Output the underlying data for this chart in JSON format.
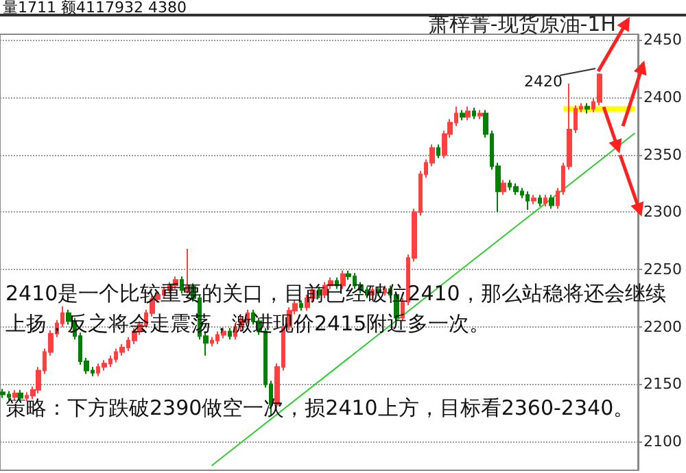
{
  "chart_data": {
    "type": "candlestick",
    "title": "萧梓菁-现货原油-1H",
    "categories": [
      null,
      null,
      null,
      null,
      null,
      null,
      null,
      null,
      null,
      null,
      null,
      null,
      null,
      null,
      null,
      null,
      null,
      null,
      null,
      null,
      null,
      null,
      null,
      null,
      null,
      null,
      null,
      null,
      null,
      null,
      null,
      null,
      null,
      null,
      null,
      null,
      null,
      null,
      null,
      null,
      null,
      null,
      null,
      null,
      null,
      null,
      null,
      null,
      null,
      null,
      null,
      null,
      null,
      null,
      null,
      null,
      null,
      null,
      null,
      null,
      null,
      null,
      null,
      null,
      null,
      null,
      null,
      null,
      null,
      null,
      null,
      null,
      null,
      null,
      null,
      null,
      null,
      null,
      null,
      null,
      null,
      null,
      null,
      null,
      null,
      null,
      null,
      null,
      null,
      null,
      null,
      null,
      null,
      null,
      null,
      null,
      null,
      null,
      null,
      null,
      null,
      null,
      null,
      null,
      null,
      null,
      null
    ],
    "ohlc": [
      [
        2143,
        2146,
        2138,
        2141
      ],
      [
        2141,
        2144,
        2136,
        2139
      ],
      [
        2139,
        2145,
        2136,
        2142
      ],
      [
        2142,
        2145,
        2135,
        2138
      ],
      [
        2138,
        2143,
        2135,
        2140
      ],
      [
        2140,
        2148,
        2137,
        2145
      ],
      [
        2145,
        2165,
        2142,
        2162
      ],
      [
        2162,
        2181,
        2159,
        2178
      ],
      [
        2178,
        2197,
        2175,
        2194
      ],
      [
        2194,
        2206,
        2191,
        2203
      ],
      [
        2203,
        2218,
        2200,
        2212
      ],
      [
        2212,
        2215,
        2202,
        2205
      ],
      [
        2205,
        2208,
        2189,
        2192
      ],
      [
        2192,
        2195,
        2167,
        2170
      ],
      [
        2170,
        2173,
        2159,
        2162
      ],
      [
        2162,
        2165,
        2157,
        2160
      ],
      [
        2160,
        2168,
        2157,
        2165
      ],
      [
        2165,
        2171,
        2162,
        2168
      ],
      [
        2168,
        2175,
        2165,
        2172
      ],
      [
        2172,
        2181,
        2169,
        2178
      ],
      [
        2178,
        2185,
        2175,
        2182
      ],
      [
        2182,
        2191,
        2179,
        2188
      ],
      [
        2188,
        2199,
        2185,
        2196
      ],
      [
        2196,
        2205,
        2193,
        2202
      ],
      [
        2202,
        2215,
        2199,
        2212
      ],
      [
        2212,
        2227,
        2209,
        2224
      ],
      [
        2224,
        2231,
        2221,
        2228
      ],
      [
        2228,
        2235,
        2225,
        2232
      ],
      [
        2232,
        2239,
        2229,
        2236
      ],
      [
        2236,
        2244,
        2233,
        2241
      ],
      [
        2241,
        2244,
        2229,
        2232
      ],
      [
        2232,
        2268,
        2229,
        2235
      ],
      [
        2235,
        2238,
        2222,
        2225
      ],
      [
        2225,
        2228,
        2189,
        2192
      ],
      [
        2192,
        2195,
        2175,
        2186
      ],
      [
        2186,
        2191,
        2183,
        2188
      ],
      [
        2188,
        2196,
        2185,
        2193
      ],
      [
        2193,
        2199,
        2190,
        2196
      ],
      [
        2196,
        2199,
        2189,
        2192
      ],
      [
        2192,
        2203,
        2189,
        2200
      ],
      [
        2200,
        2209,
        2197,
        2206
      ],
      [
        2206,
        2215,
        2203,
        2212
      ],
      [
        2212,
        2215,
        2202,
        2205
      ],
      [
        2205,
        2208,
        2193,
        2196
      ],
      [
        2196,
        2199,
        2147,
        2150
      ],
      [
        2150,
        2153,
        2122,
        2132
      ],
      [
        2132,
        2168,
        2129,
        2165
      ],
      [
        2165,
        2203,
        2162,
        2200
      ],
      [
        2200,
        2217,
        2197,
        2214
      ],
      [
        2214,
        2223,
        2211,
        2220
      ],
      [
        2220,
        2223,
        2214,
        2217
      ],
      [
        2217,
        2228,
        2214,
        2225
      ],
      [
        2225,
        2235,
        2222,
        2232
      ],
      [
        2232,
        2235,
        2225,
        2228
      ],
      [
        2228,
        2239,
        2225,
        2236
      ],
      [
        2236,
        2243,
        2233,
        2240
      ],
      [
        2240,
        2243,
        2233,
        2236
      ],
      [
        2236,
        2249,
        2233,
        2246
      ],
      [
        2246,
        2249,
        2241,
        2244
      ],
      [
        2244,
        2247,
        2233,
        2236
      ],
      [
        2236,
        2239,
        2229,
        2232
      ],
      [
        2232,
        2235,
        2225,
        2228
      ],
      [
        2228,
        2235,
        2225,
        2232
      ],
      [
        2232,
        2235,
        2227,
        2230
      ],
      [
        2230,
        2236,
        2227,
        2233
      ],
      [
        2233,
        2236,
        2225,
        2228
      ],
      [
        2228,
        2231,
        2205,
        2208
      ],
      [
        2208,
        2225,
        2205,
        2222
      ],
      [
        2222,
        2263,
        2219,
        2260
      ],
      [
        2260,
        2303,
        2257,
        2300
      ],
      [
        2300,
        2336,
        2297,
        2333
      ],
      [
        2333,
        2346,
        2330,
        2343
      ],
      [
        2343,
        2359,
        2340,
        2356
      ],
      [
        2356,
        2359,
        2347,
        2350
      ],
      [
        2350,
        2371,
        2347,
        2368
      ],
      [
        2368,
        2381,
        2365,
        2378
      ],
      [
        2378,
        2392,
        2375,
        2386
      ],
      [
        2386,
        2389,
        2380,
        2383
      ],
      [
        2383,
        2392,
        2380,
        2388
      ],
      [
        2388,
        2391,
        2381,
        2384
      ],
      [
        2384,
        2389,
        2381,
        2386
      ],
      [
        2386,
        2389,
        2365,
        2368
      ],
      [
        2368,
        2371,
        2337,
        2340
      ],
      [
        2340,
        2343,
        2300,
        2318
      ],
      [
        2318,
        2328,
        2315,
        2325
      ],
      [
        2325,
        2328,
        2319,
        2322
      ],
      [
        2322,
        2325,
        2315,
        2318
      ],
      [
        2318,
        2321,
        2312,
        2315
      ],
      [
        2315,
        2318,
        2302,
        2310
      ],
      [
        2310,
        2315,
        2307,
        2312
      ],
      [
        2312,
        2315,
        2305,
        2308
      ],
      [
        2308,
        2315,
        2305,
        2312
      ],
      [
        2312,
        2315,
        2303,
        2306
      ],
      [
        2306,
        2321,
        2303,
        2318
      ],
      [
        2318,
        2343,
        2315,
        2340
      ],
      [
        2340,
        2412,
        2337,
        2372
      ],
      [
        2372,
        2393,
        2369,
        2390
      ],
      [
        2390,
        2395,
        2387,
        2392
      ],
      [
        2392,
        2395,
        2386,
        2390
      ],
      [
        2390,
        2399,
        2387,
        2396
      ],
      [
        2396,
        2421,
        2393,
        2420
      ],
      null,
      null,
      null,
      null,
      null,
      null
    ],
    "series": [
      {
        "type": "line",
        "color": "#33cc33",
        "values": [
          null,
          null,
          null,
          null,
          null,
          null,
          null,
          null,
          null,
          null,
          null,
          null,
          null,
          null,
          null,
          null,
          null,
          null,
          null,
          null,
          null,
          null,
          null,
          null,
          null,
          null,
          null,
          null,
          null,
          null,
          null,
          null,
          null,
          null,
          null,
          2079,
          null,
          null,
          null,
          null,
          null,
          null,
          null,
          null,
          null,
          null,
          null,
          null,
          null,
          null,
          null,
          null,
          null,
          null,
          null,
          null,
          null,
          null,
          null,
          null,
          null,
          null,
          null,
          null,
          null,
          null,
          null,
          null,
          null,
          null,
          null,
          null,
          null,
          null,
          null,
          null,
          null,
          null,
          null,
          null,
          null,
          null,
          null,
          null,
          null,
          null,
          null,
          null,
          null,
          null,
          null,
          null,
          null,
          null,
          null,
          null,
          null,
          null,
          null,
          null,
          null,
          null,
          null,
          null,
          null,
          null,
          2369
        ]
      },
      {
        "type": "line",
        "color": "#ffff00",
        "values": [
          null,
          null,
          null,
          null,
          null,
          null,
          null,
          null,
          null,
          null,
          null,
          null,
          null,
          null,
          null,
          null,
          null,
          null,
          null,
          null,
          null,
          null,
          null,
          null,
          null,
          null,
          null,
          null,
          null,
          null,
          null,
          null,
          null,
          null,
          null,
          null,
          null,
          null,
          null,
          null,
          null,
          null,
          null,
          null,
          null,
          null,
          null,
          null,
          null,
          null,
          null,
          null,
          null,
          null,
          null,
          null,
          null,
          null,
          null,
          null,
          null,
          null,
          null,
          null,
          null,
          null,
          null,
          null,
          null,
          null,
          null,
          null,
          null,
          null,
          null,
          null,
          null,
          null,
          null,
          null,
          null,
          null,
          null,
          null,
          null,
          null,
          null,
          null,
          null,
          null,
          null,
          null,
          null,
          null,
          2390,
          null,
          null,
          null,
          null,
          null,
          null,
          null,
          null,
          null,
          null,
          null,
          2390
        ]
      }
    ],
    "ylim": [
      2075,
      2455
    ],
    "yticks": [
      2100,
      2150,
      2200,
      2250,
      2300,
      2350,
      2400,
      2450
    ],
    "grid": "y",
    "tick_labels": "y",
    "annotations": [
      "量1711 额4117932 4380",
      "2420",
      "2410是一个比较重要的关口，目前已经破位2410，那么站稳将还会继续上扬，反之将会走震荡，激进现价2415附近多一次。",
      "策略：下方跌破2390做空一次，损2410上方，目标看2360-2340。"
    ]
  }
}
